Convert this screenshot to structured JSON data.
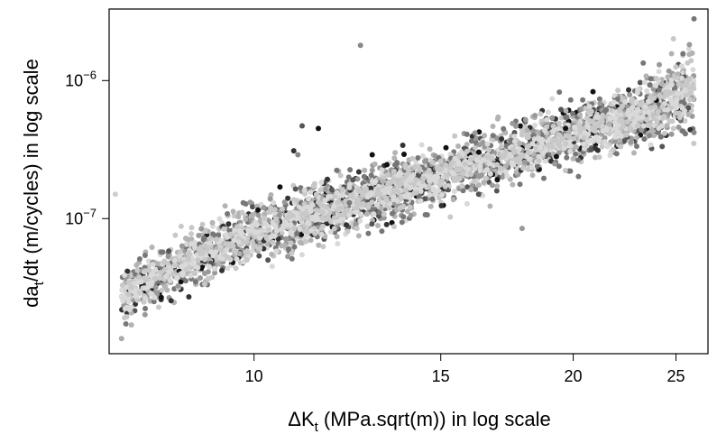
{
  "chart_data": {
    "type": "scatter",
    "title": "",
    "xlabel": {
      "main": "ΔK",
      "sub": "t",
      "rest": " (MPa.sqrt(m)) in log scale"
    },
    "ylabel": {
      "main": "da",
      "sub": "t",
      "rest": "/dt (m/cycles) in log scale"
    },
    "x_scale": "log",
    "y_scale": "log",
    "xlim": [
      7.3,
      26.8
    ],
    "ylim": [
      1.05e-08,
      3.3e-06
    ],
    "x_ticks": [
      {
        "value": 10,
        "label": "10"
      },
      {
        "value": 15,
        "label": "15"
      },
      {
        "value": 20,
        "label": "20"
      },
      {
        "value": 25,
        "label": "25"
      }
    ],
    "y_ticks": [
      {
        "value": 1e-07,
        "label_base": "10",
        "label_exp": "−7"
      },
      {
        "value": 1e-06,
        "label_base": "10",
        "label_exp": "−6"
      }
    ],
    "grid": false,
    "legend": "none",
    "colors": [
      "#111111",
      "#333333",
      "#555555",
      "#777777",
      "#999999",
      "#b3b3b3",
      "#c8c8c8",
      "#d9d9d9"
    ],
    "trend": [
      {
        "x": 7.5,
        "y_low": 1.8e-08,
        "y_high": 4.3e-08
      },
      {
        "x": 9.0,
        "y_low": 3.5e-08,
        "y_high": 9e-08
      },
      {
        "x": 10.0,
        "y_low": 5e-08,
        "y_high": 1.25e-07
      },
      {
        "x": 12.0,
        "y_low": 7.5e-08,
        "y_high": 2e-07
      },
      {
        "x": 15.0,
        "y_low": 1.3e-07,
        "y_high": 3.2e-07
      },
      {
        "x": 18.0,
        "y_low": 2e-07,
        "y_high": 5e-07
      },
      {
        "x": 20.0,
        "y_low": 2.6e-07,
        "y_high": 6.5e-07
      },
      {
        "x": 23.0,
        "y_low": 3.4e-07,
        "y_high": 9e-07
      },
      {
        "x": 26.0,
        "y_low": 4.5e-07,
        "y_high": 1.8e-06
      }
    ],
    "outliers": [
      {
        "x": 7.4,
        "y": 1.5e-07,
        "shade": "#cfcfcf"
      },
      {
        "x": 12.6,
        "y": 1.8e-06,
        "shade": "#888888"
      },
      {
        "x": 7.5,
        "y": 1.35e-08,
        "shade": "#aaaaaa"
      },
      {
        "x": 11.1,
        "y": 4.7e-07,
        "shade": "#555555"
      },
      {
        "x": 11.5,
        "y": 4.5e-07,
        "shade": "#111111"
      },
      {
        "x": 12.3,
        "y": 1.3e-07,
        "shade": "#777777"
      },
      {
        "x": 17.9,
        "y": 8.5e-08,
        "shade": "#999999"
      },
      {
        "x": 26.0,
        "y": 2.8e-06,
        "shade": "#777777"
      },
      {
        "x": 26.0,
        "y": 4.2e-07,
        "shade": "#888888"
      },
      {
        "x": 23.6,
        "y": 4e-07,
        "shade": "#888888"
      },
      {
        "x": 10.9,
        "y": 3.1e-07,
        "shade": "#333333"
      },
      {
        "x": 11.0,
        "y": 2.9e-07,
        "shade": "#888888"
      }
    ]
  }
}
